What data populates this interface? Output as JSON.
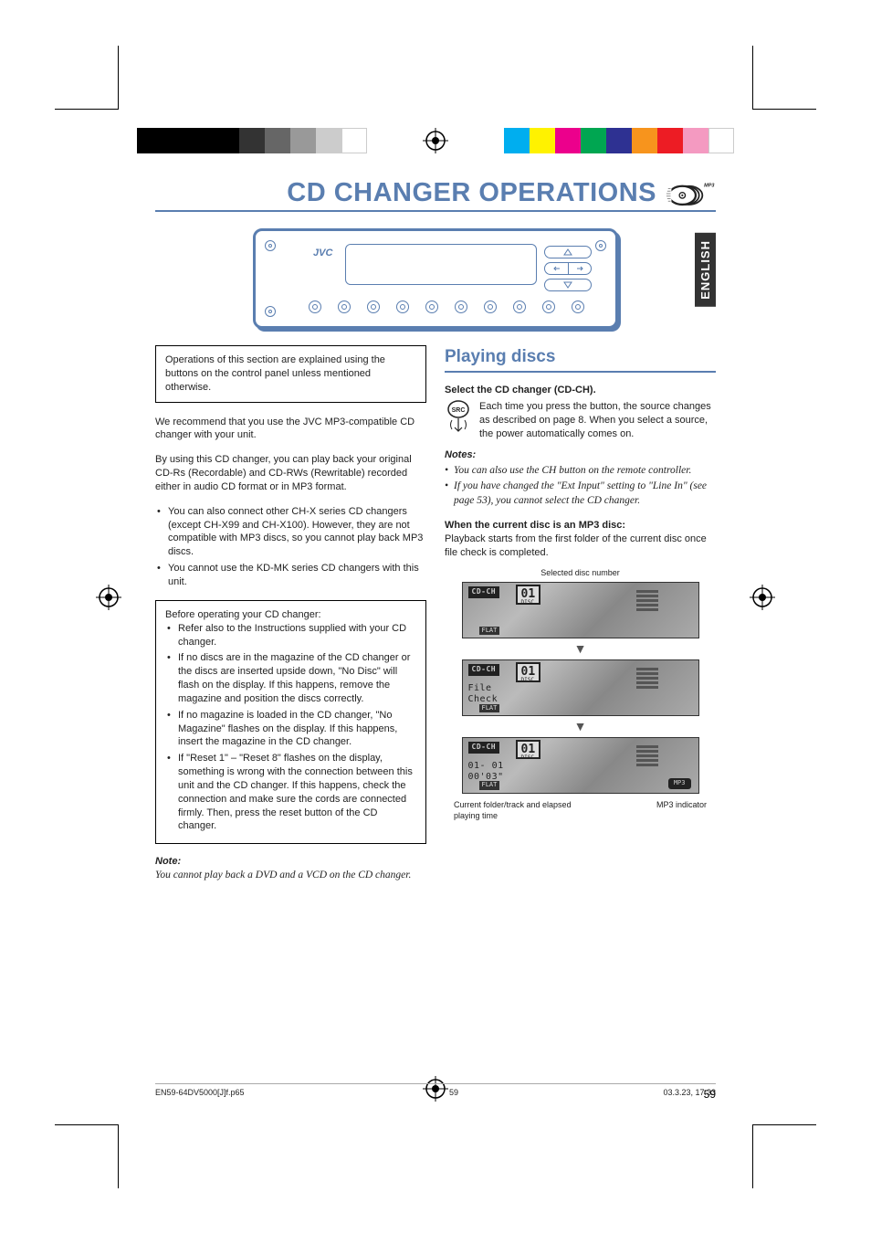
{
  "colorBarLeft": [
    "#000000",
    "#000000",
    "#000000",
    "#000000",
    "#333333",
    "#666666",
    "#999999",
    "#cccccc",
    "#ffffff"
  ],
  "colorBarRight": [
    "#00aeef",
    "#fff200",
    "#ec008c",
    "#00a651",
    "#2e3192",
    "#f7941d",
    "#ed1c24",
    "#f49ac1",
    "#ffffff"
  ],
  "title": "CD CHANGER OPERATIONS",
  "mp3Label": "MP3",
  "langTab": "ENGLISH",
  "stereoLogo": "JVC",
  "leftCol": {
    "infoBox": "Operations of this section are explained using the buttons on the control panel unless mentioned otherwise.",
    "p1": "We recommend that you use the JVC MP3-compatible CD changer with your unit.",
    "p2": "By using this CD changer, you can play back your original CD-Rs (Recordable) and CD-RWs (Rewritable) recorded either in audio CD format or in MP3 format.",
    "b1": "You can also connect other CH-X series CD changers (except CH-X99 and CH-X100). However, they are not compatible with MP3 discs, so you cannot play back MP3 discs.",
    "b2": "You cannot use the KD-MK series CD changers with this unit.",
    "box2Intro": "Before operating your CD changer:",
    "box2b1": "Refer also to the Instructions supplied with your CD changer.",
    "box2b2": "If no discs are in the magazine of the CD changer or the discs are inserted upside down, \"No Disc\" will flash on the display. If this happens, remove the magazine and position the discs correctly.",
    "box2b3": "If no magazine is loaded in the CD changer, \"No Magazine\" flashes on the display. If this happens, insert the magazine in the CD changer.",
    "box2b4": "If \"Reset 1\" – \"Reset 8\" flashes on the display, something is wrong with the connection between this unit and the CD changer. If this happens, check the connection and make sure the cords are connected firmly. Then, press the reset button of the CD changer.",
    "noteLabel": "Note:",
    "noteText": "You cannot play back a DVD and a VCD on the CD changer."
  },
  "rightCol": {
    "sectionTitle": "Playing discs",
    "stepTitle": "Select the CD changer (CD-CH).",
    "srcLabel": "SRC",
    "stepText": "Each time you press the button, the source changes as described on page 8. When you select a source, the power automatically comes on.",
    "notesLabel": "Notes:",
    "n1": "You can also use the CH button on the remote controller.",
    "n2": "If you have changed the \"Ext Input\" setting to \"Line In\" (see page 53), you cannot select the CD changer.",
    "mp3Title": "When the current disc is an MP3 disc:",
    "mp3Text": "Playback starts from the first folder of the current disc once file check is completed.",
    "labelTop": "Selected disc number",
    "screen1": {
      "badge": "CD-CH",
      "disc": "01",
      "discLbl": "DISC",
      "flat": "FLAT"
    },
    "screen2": {
      "badge": "CD-CH",
      "disc": "01",
      "discLbl": "DISC",
      "l1": "File",
      "l2": "Check",
      "flat": "FLAT"
    },
    "screen3": {
      "badge": "CD-CH",
      "disc": "01",
      "discLbl": "DISC",
      "l1": "01- 01",
      "l2": "00'03\"",
      "flat": "FLAT",
      "mp3": "MP3"
    },
    "labelBL": "Current folder/track and elapsed playing time",
    "labelBR": "MP3 indicator"
  },
  "pageNum": "59",
  "footer": {
    "file": "EN59-64DV5000[J]f.p65",
    "page": "59",
    "date": "03.3.23, 17:33"
  }
}
